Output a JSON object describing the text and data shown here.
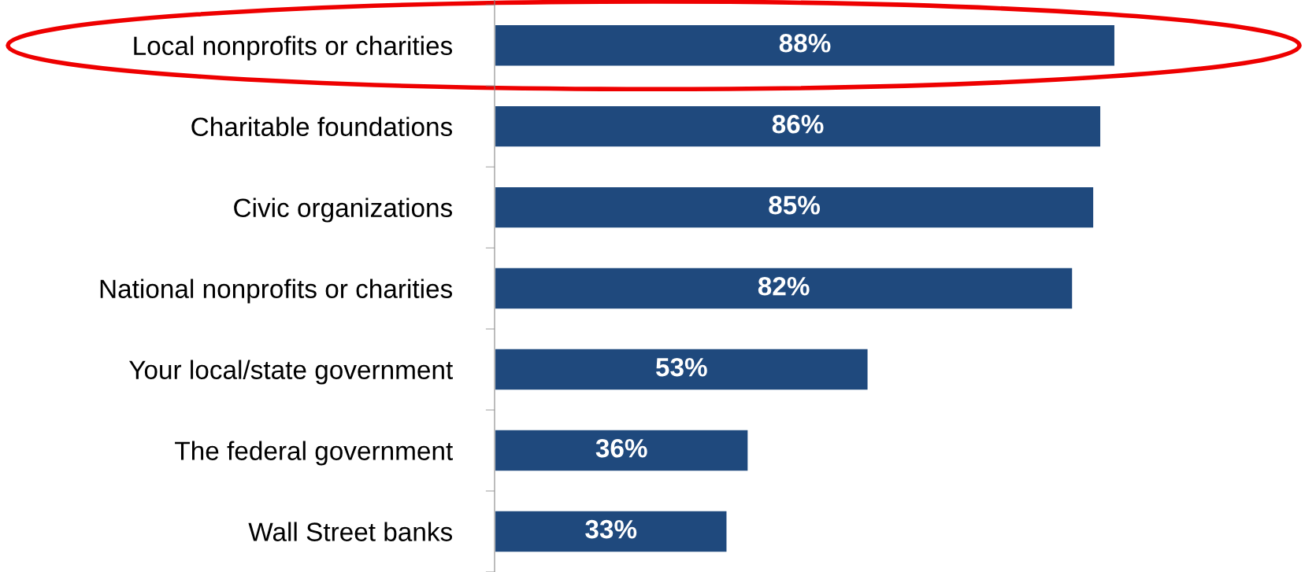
{
  "chart_data": {
    "type": "bar",
    "orientation": "horizontal",
    "categories": [
      "Local nonprofits or charities",
      "Charitable foundations",
      "Civic organizations",
      "National nonprofits or charities",
      "Your local/state government",
      "The federal government",
      "Wall Street banks"
    ],
    "values": [
      88,
      86,
      85,
      82,
      53,
      36,
      33
    ],
    "value_labels": [
      "88%",
      "86%",
      "85%",
      "82%",
      "53%",
      "36%",
      "33%"
    ],
    "color": "#1f497d",
    "tick_labels": "y",
    "grid": false,
    "legend": false
  }
}
